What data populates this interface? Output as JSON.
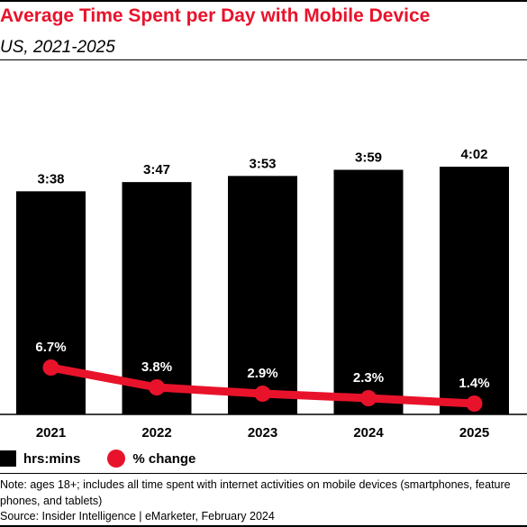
{
  "header": {
    "title": "Average Time Spent per Day with Mobile Device",
    "subtitle": "US, 2021-2025"
  },
  "legend": {
    "bars_label": "hrs:mins",
    "line_label": "% change"
  },
  "footer": {
    "note": "Note: ages 18+; includes all time spent with internet activities on mobile devices (smartphones, feature phones, and tablets)",
    "source": "Source: Insider Intelligence | eMarketer, February 2024"
  },
  "colors": {
    "bar": "#000000",
    "line": "#e8132b"
  },
  "chart_data": {
    "type": "bar",
    "categories": [
      "2021",
      "2022",
      "2023",
      "2024",
      "2025"
    ],
    "series": [
      {
        "name": "hrs:mins",
        "values": [
          218,
          227,
          233,
          239,
          242
        ],
        "labels": [
          "3:38",
          "3:47",
          "3:53",
          "3:59",
          "4:02"
        ]
      },
      {
        "name": "% change",
        "type": "line",
        "values": [
          6.7,
          3.8,
          2.9,
          2.3,
          1.4
        ],
        "labels": [
          "6.7%",
          "3.8%",
          "2.9%",
          "2.3%",
          "1.4%"
        ]
      }
    ],
    "title": "Average Time Spent per Day with Mobile Device",
    "subtitle": "US, 2021-2025",
    "xlabel": "",
    "ylabel": "",
    "grid": false,
    "legend_position": "bottom-left"
  }
}
